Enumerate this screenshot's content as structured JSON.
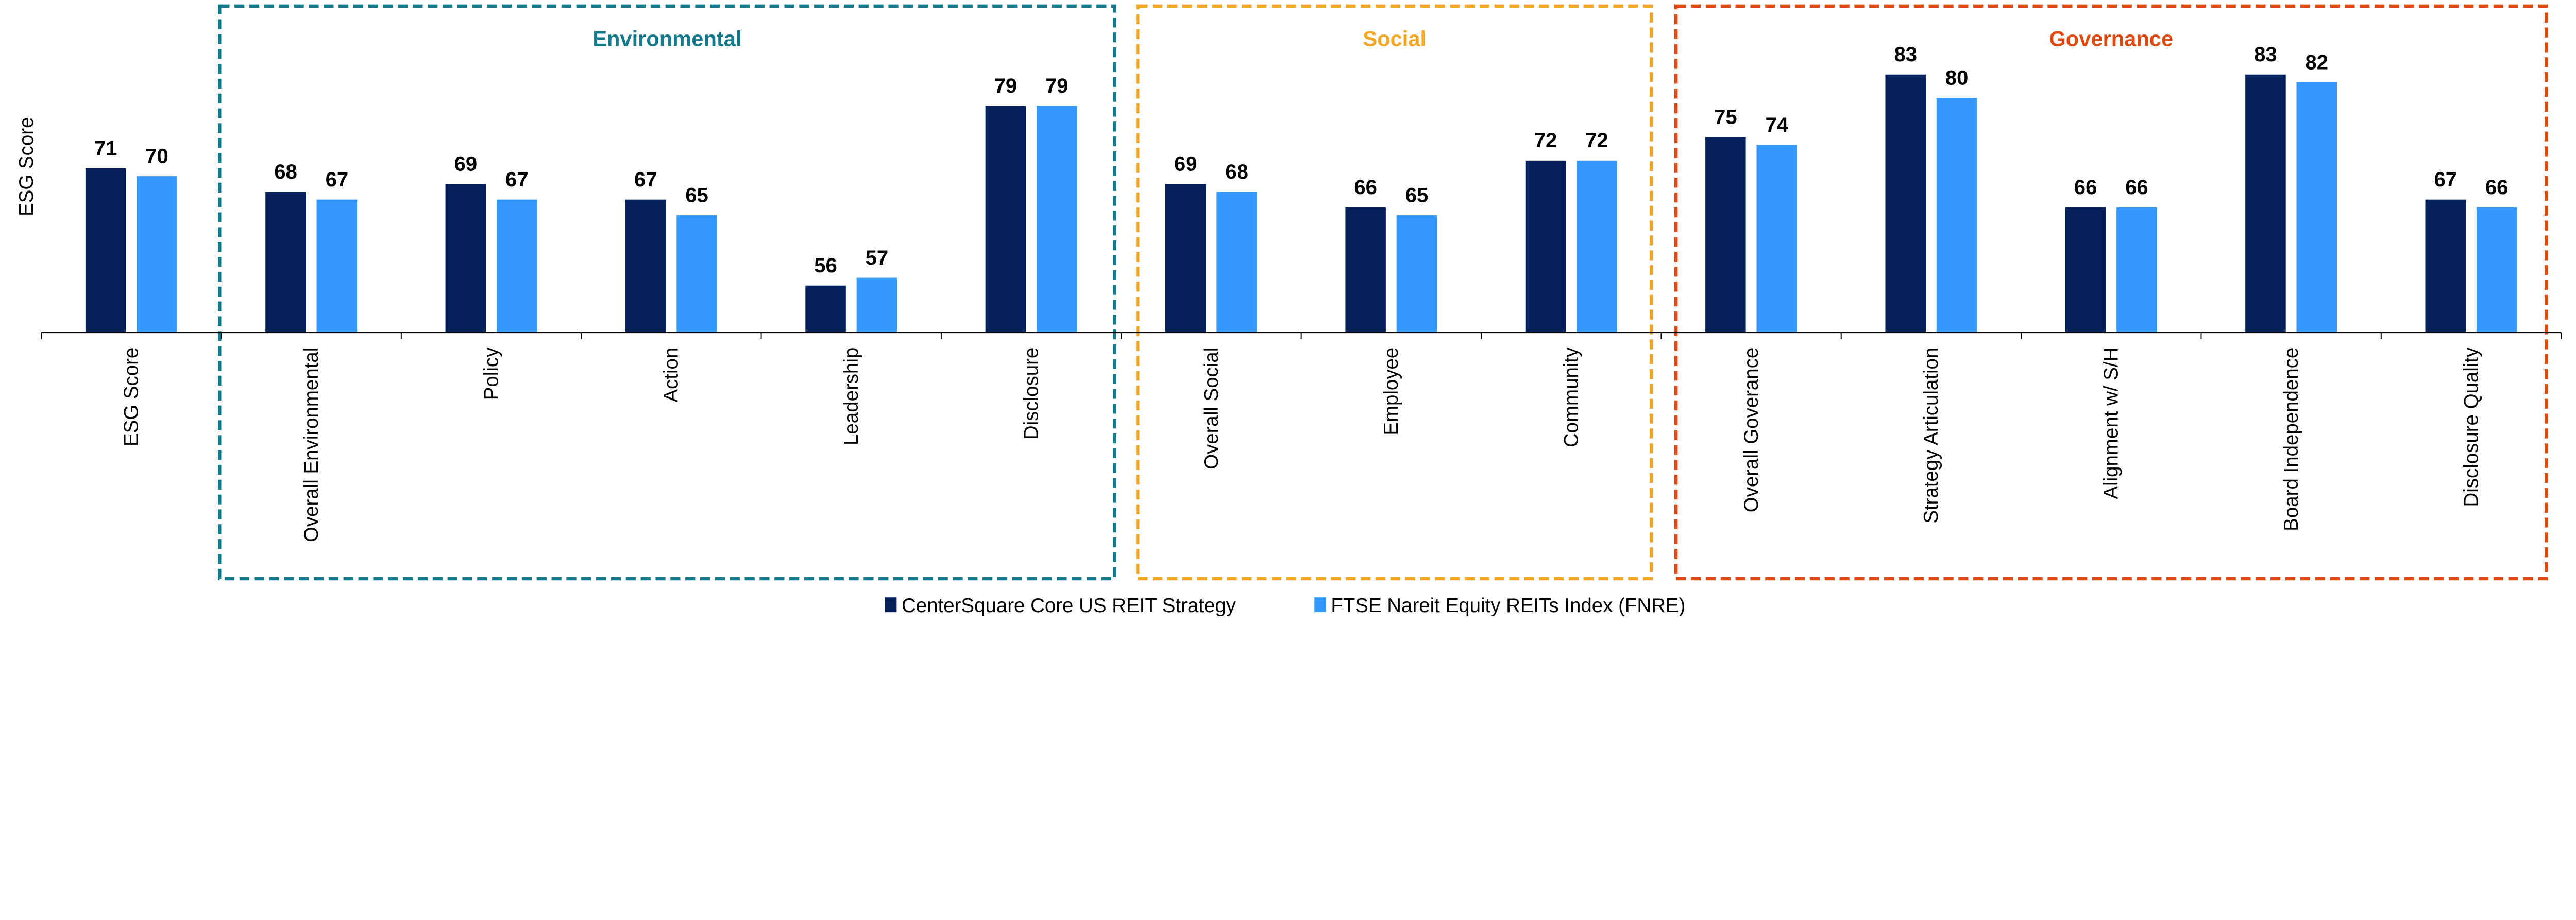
{
  "chart_data": {
    "type": "bar",
    "title": "",
    "xlabel": "",
    "ylabel": "ESG Score",
    "ylim": [
      50,
      90
    ],
    "grid": false,
    "legend_position": "bottom",
    "categories": [
      "ESG Score",
      "Overall Environmental",
      "Policy",
      "Action",
      "Leadership",
      "Disclosure",
      "Overall Social",
      "Employee",
      "Community",
      "Overall Goverance",
      "Strategy Articulation",
      "Alignment w/ S/H",
      "Board Independence",
      "Disclosure Quality"
    ],
    "series": [
      {
        "name": "CenterSquare Core US REIT Strategy",
        "color": "#03205A",
        "values": [
          71,
          68,
          69,
          67,
          56,
          79,
          69,
          66,
          72,
          75,
          83,
          66,
          83,
          67
        ]
      },
      {
        "name": "FTSE Nareit Equity REITs Index (FNRE)",
        "color": "#3399FF",
        "values": [
          70,
          67,
          67,
          65,
          57,
          79,
          68,
          65,
          72,
          74,
          80,
          66,
          82,
          66
        ]
      }
    ],
    "groups": [
      {
        "label": "Environmental",
        "color": "#127A8C",
        "start": 1,
        "end": 5
      },
      {
        "label": "Social",
        "color": "#F5A623",
        "start": 6,
        "end": 8
      },
      {
        "label": "Governance",
        "color": "#E04A10",
        "start": 9,
        "end": 13
      }
    ]
  }
}
